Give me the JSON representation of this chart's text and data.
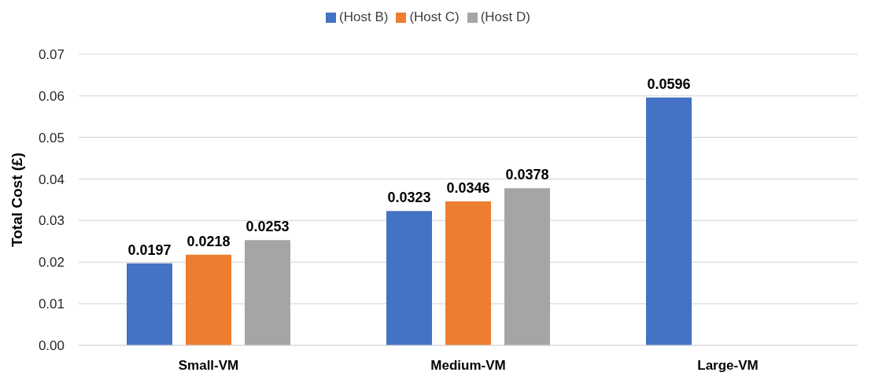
{
  "chart_data": {
    "type": "bar",
    "ylabel": "Total Cost (£)",
    "categories": [
      "Small-VM",
      "Medium-VM",
      "Large-VM"
    ],
    "series": [
      {
        "name": "(Host B)",
        "color": "#4472c4",
        "values": [
          0.0197,
          0.0323,
          0.0596
        ]
      },
      {
        "name": "(Host C)",
        "color": "#ed7d31",
        "values": [
          0.0218,
          0.0346,
          null
        ]
      },
      {
        "name": "(Host D)",
        "color": "#a5a5a5",
        "values": [
          0.0253,
          0.0378,
          null
        ]
      }
    ],
    "ylim": [
      0,
      0.07
    ],
    "yticks": [
      {
        "value": 0,
        "label": "0.00"
      },
      0.01,
      0.02,
      0.03,
      0.04,
      0.05,
      0.06,
      0.07
    ],
    "grid": "y",
    "legend": "top",
    "data_labels": true
  }
}
